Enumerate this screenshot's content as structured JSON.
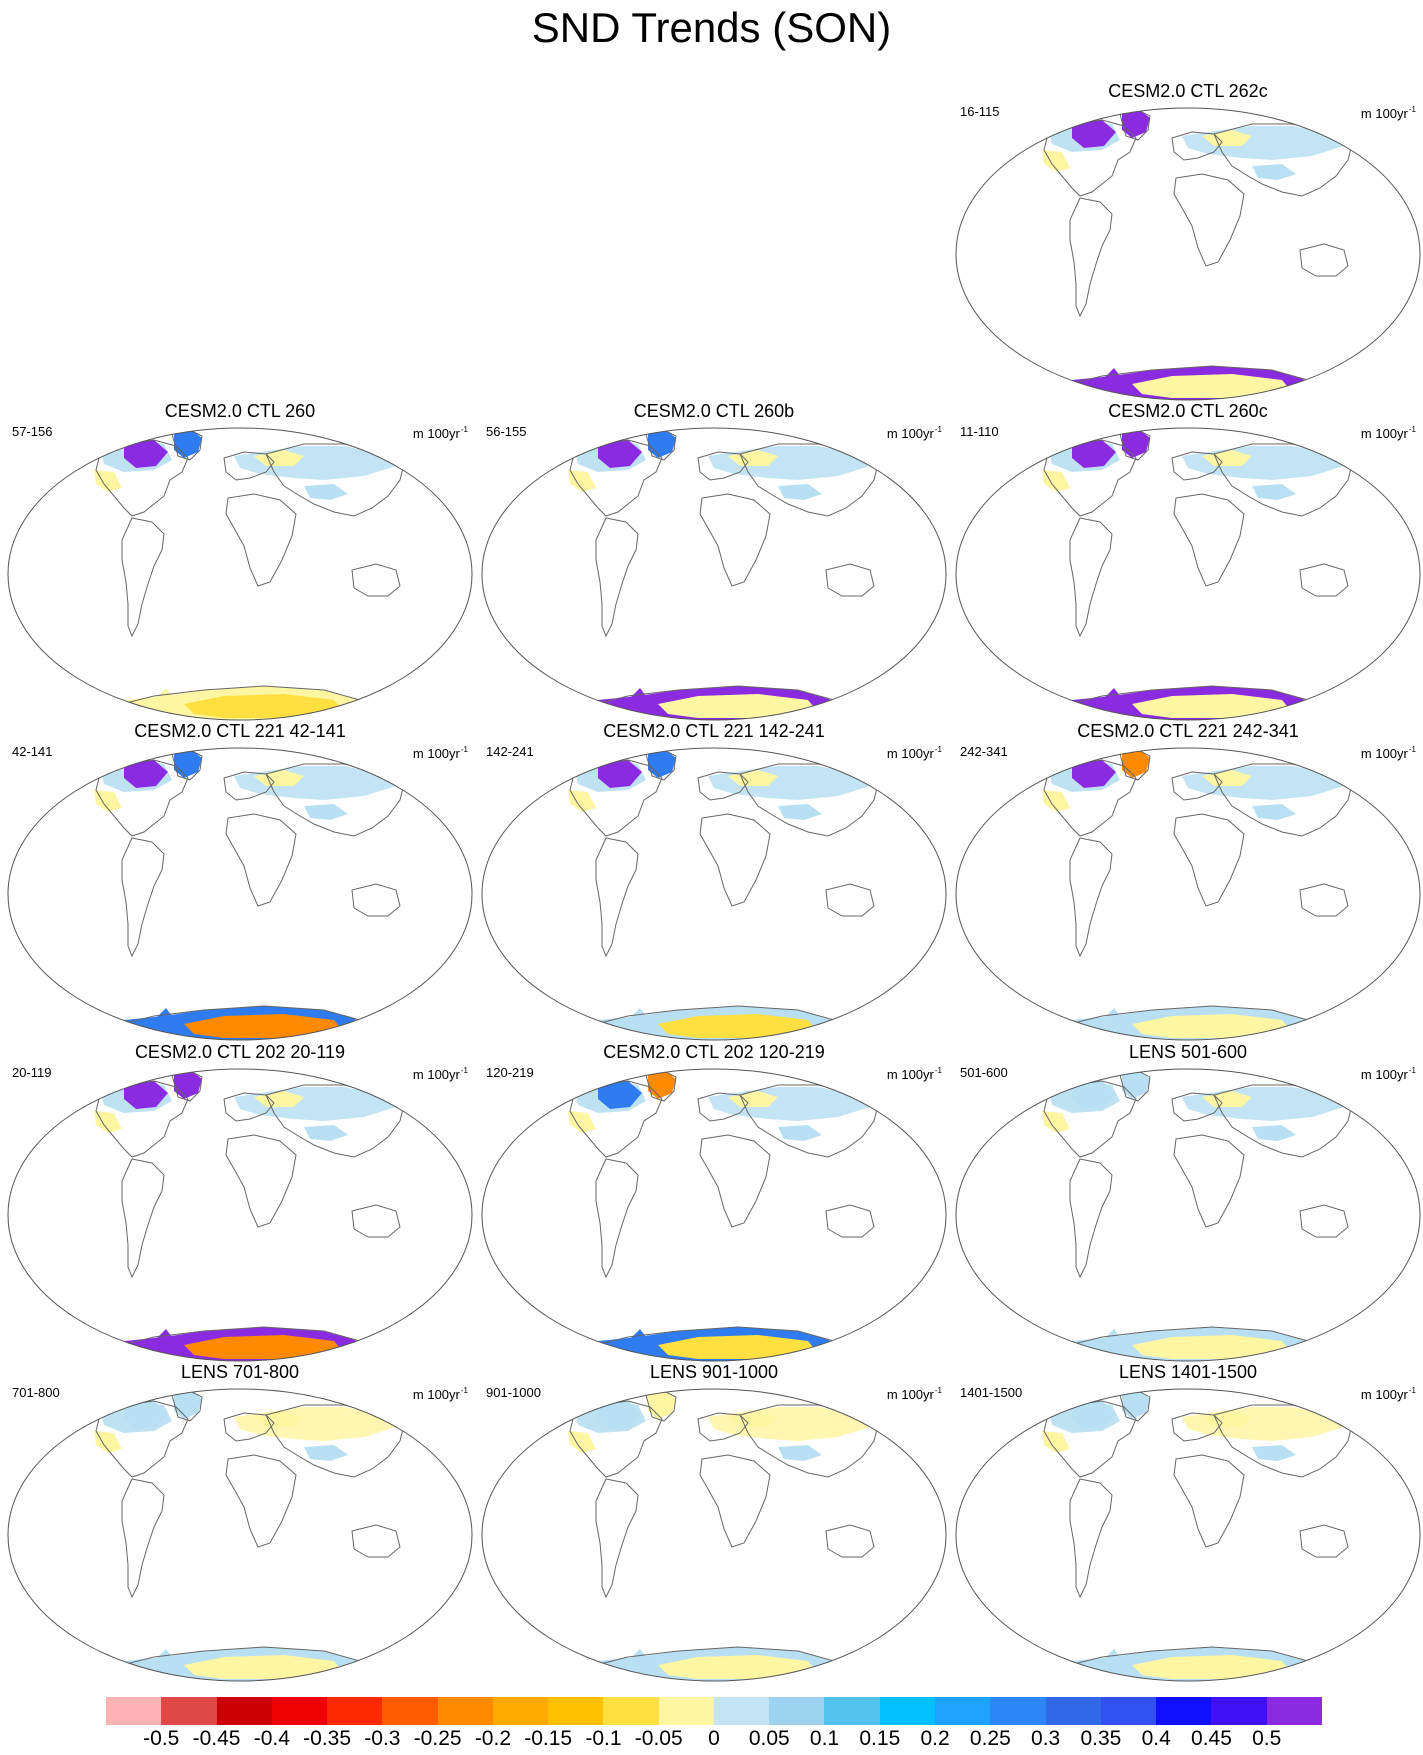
{
  "title": "SND Trends (SON)",
  "units_main": "m 100yr",
  "units_sup": "-1",
  "colors": {
    "land_outline": "#666666",
    "border": "#555555",
    "purple": "#8a2be2",
    "dark_blue": "#1e2ff5",
    "mid_blue": "#2f7bf0",
    "light_blue": "#b8dff2",
    "pale_yellow": "#fff6a3",
    "yellow": "#ffe040",
    "orange": "#ff8a00",
    "red": "#e02010"
  },
  "colorbar": {
    "colors": [
      "#ffb3b3",
      "#e04848",
      "#cc0000",
      "#ee0000",
      "#ff2a00",
      "#ff5c00",
      "#ff8a00",
      "#ffaa00",
      "#ffc000",
      "#ffe040",
      "#fff6a3",
      "#c2e4f5",
      "#9ed3ef",
      "#55c3f0",
      "#00c0ff",
      "#1ea2ff",
      "#2e85f5",
      "#3068e8",
      "#3050f0",
      "#1010ff",
      "#4010f5",
      "#8a2be2"
    ],
    "labels": [
      "-0.5",
      "-0.45",
      "-0.4",
      "-0.35",
      "-0.3",
      "-0.25",
      "-0.2",
      "-0.15",
      "-0.1",
      "-0.05",
      "0",
      "0.05",
      "0.1",
      "0.15",
      "0.2",
      "0.25",
      "0.3",
      "0.35",
      "0.4",
      "0.45",
      "0.5"
    ]
  },
  "panels": [
    {
      "title": "CESM2.0 CTL 262c",
      "years": "16-115",
      "greenland": "purple",
      "canada": "purple",
      "siberia": "light_blue",
      "antarctica": "purple",
      "antarctica_interior": "pale_yellow"
    },
    {
      "title": "CESM2.0 CTL 260",
      "years": "57-156",
      "greenland": "mid_blue",
      "canada": "purple",
      "siberia": "light_blue",
      "antarctica": "pale_yellow",
      "antarctica_interior": "yellow"
    },
    {
      "title": "CESM2.0 CTL 260b",
      "years": "56-155",
      "greenland": "mid_blue",
      "canada": "purple",
      "siberia": "light_blue",
      "antarctica": "purple",
      "antarctica_interior": "pale_yellow"
    },
    {
      "title": "CESM2.0 CTL 260c",
      "years": "11-110",
      "greenland": "purple",
      "canada": "purple",
      "siberia": "light_blue",
      "antarctica": "purple",
      "antarctica_interior": "pale_yellow"
    },
    {
      "title": "CESM2.0 CTL 221 42-141",
      "years": "42-141",
      "greenland": "mid_blue",
      "canada": "purple",
      "siberia": "light_blue",
      "antarctica": "mid_blue",
      "antarctica_interior": "orange"
    },
    {
      "title": "CESM2.0 CTL 221 142-241",
      "years": "142-241",
      "greenland": "mid_blue",
      "canada": "purple",
      "siberia": "light_blue",
      "antarctica": "light_blue",
      "antarctica_interior": "yellow"
    },
    {
      "title": "CESM2.0 CTL 221 242-341",
      "years": "242-341",
      "greenland": "orange",
      "canada": "purple",
      "siberia": "light_blue",
      "antarctica": "light_blue",
      "antarctica_interior": "pale_yellow"
    },
    {
      "title": "CESM2.0 CTL 202 20-119",
      "years": "20-119",
      "greenland": "purple",
      "canada": "purple",
      "siberia": "light_blue",
      "antarctica": "purple",
      "antarctica_interior": "orange"
    },
    {
      "title": "CESM2.0 CTL 202 120-219",
      "years": "120-219",
      "greenland": "orange",
      "canada": "mid_blue",
      "siberia": "light_blue",
      "antarctica": "mid_blue",
      "antarctica_interior": "yellow"
    },
    {
      "title": "LENS 501-600",
      "years": "501-600",
      "greenland": "light_blue",
      "canada": "light_blue",
      "siberia": "light_blue",
      "antarctica": "light_blue",
      "antarctica_interior": "pale_yellow"
    },
    {
      "title": "LENS 701-800",
      "years": "701-800",
      "greenland": "light_blue",
      "canada": "light_blue",
      "siberia": "pale_yellow",
      "antarctica": "light_blue",
      "antarctica_interior": "pale_yellow"
    },
    {
      "title": "LENS 901-1000",
      "years": "901-1000",
      "greenland": "pale_yellow",
      "canada": "light_blue",
      "siberia": "pale_yellow",
      "antarctica": "light_blue",
      "antarctica_interior": "pale_yellow"
    },
    {
      "title": "LENS 1401-1500",
      "years": "1401-1500",
      "greenland": "light_blue",
      "canada": "light_blue",
      "siberia": "pale_yellow",
      "antarctica": "light_blue",
      "antarctica_interior": "pale_yellow"
    }
  ]
}
